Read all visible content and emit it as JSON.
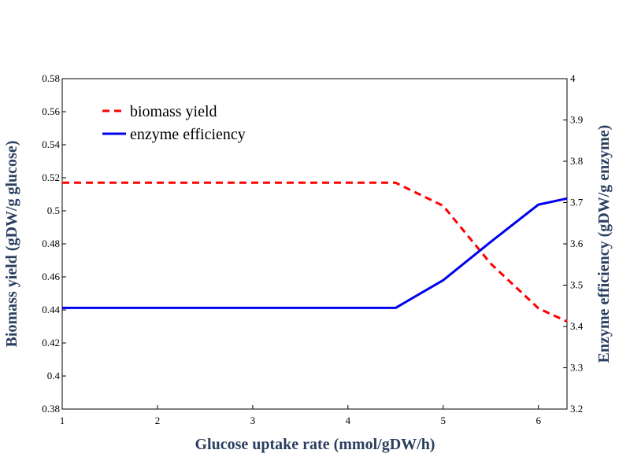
{
  "chart_data": {
    "type": "line",
    "xlabel": "Glucose uptake rate (mmol/gDW/h)",
    "ylabel_left": "Biomass yield (gDW/g glucose)",
    "ylabel_right": "Enzyme efficiency (gDW/g enzyme)",
    "xlim": [
      1,
      6.3
    ],
    "ylim_left": [
      0.38,
      0.58
    ],
    "ylim_right": [
      3.2,
      4.0
    ],
    "xticks": [
      "1",
      "2",
      "3",
      "4",
      "5",
      "6"
    ],
    "yticks_left": [
      "0.38",
      "0.4",
      "0.42",
      "0.44",
      "0.46",
      "0.48",
      "0.5",
      "0.52",
      "0.54",
      "0.56",
      "0.58"
    ],
    "yticks_right": [
      "3.2",
      "3.3",
      "3.4",
      "3.5",
      "3.6",
      "3.7",
      "3.8",
      "3.9",
      "4"
    ],
    "grid": false,
    "legend_position": "top-left",
    "series": [
      {
        "name": "biomass yield",
        "axis": "left",
        "color": "#ff0000",
        "dash": "dashed",
        "x": [
          1,
          4.5,
          5,
          5.5,
          6,
          6.3
        ],
        "y": [
          0.517,
          0.517,
          0.503,
          0.468,
          0.441,
          0.433
        ]
      },
      {
        "name": "enzyme efficiency",
        "axis": "right",
        "color": "#0000ee",
        "dash": "solid",
        "x": [
          1,
          4.5,
          5,
          5.5,
          6,
          6.3
        ],
        "y": [
          3.445,
          3.445,
          3.512,
          3.605,
          3.695,
          3.71
        ]
      }
    ]
  }
}
